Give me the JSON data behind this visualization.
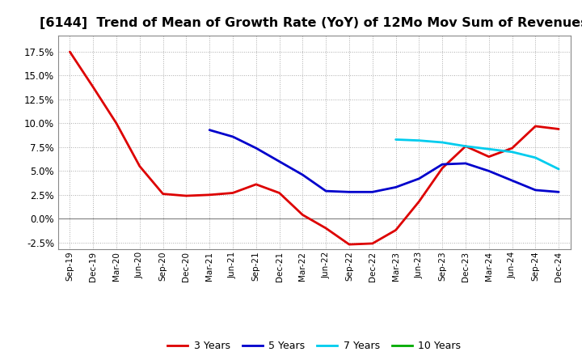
{
  "title": "[6144]  Trend of Mean of Growth Rate (YoY) of 12Mo Mov Sum of Revenues",
  "title_fontsize": 11.5,
  "background_color": "#ffffff",
  "plot_bg_color": "#ffffff",
  "grid_color": "#aaaaaa",
  "ylim": [
    -0.032,
    0.192
  ],
  "yticks": [
    -0.025,
    0.0,
    0.025,
    0.05,
    0.075,
    0.1,
    0.125,
    0.15,
    0.175
  ],
  "x_labels": [
    "Sep-19",
    "Dec-19",
    "Mar-20",
    "Jun-20",
    "Sep-20",
    "Dec-20",
    "Mar-21",
    "Jun-21",
    "Sep-21",
    "Dec-21",
    "Mar-22",
    "Jun-22",
    "Sep-22",
    "Dec-22",
    "Mar-23",
    "Jun-23",
    "Sep-23",
    "Dec-23",
    "Mar-24",
    "Jun-24",
    "Sep-24",
    "Dec-24"
  ],
  "series": {
    "3 Years": {
      "color": "#dd0000",
      "linewidth": 2.0,
      "data_x": [
        0,
        1,
        2,
        3,
        4,
        5,
        6,
        7,
        8,
        9,
        10,
        11,
        12,
        13,
        14,
        15,
        16,
        17,
        18,
        19,
        20,
        21
      ],
      "data_y": [
        0.175,
        0.138,
        0.1,
        0.055,
        0.026,
        0.024,
        0.025,
        0.027,
        0.036,
        0.027,
        0.004,
        -0.01,
        -0.027,
        -0.026,
        -0.012,
        0.018,
        0.053,
        0.076,
        0.065,
        0.074,
        0.097,
        0.094
      ]
    },
    "5 Years": {
      "color": "#0000cc",
      "linewidth": 2.0,
      "data_x": [
        6,
        7,
        8,
        9,
        10,
        11,
        12,
        13,
        14,
        15,
        16,
        17,
        18,
        19,
        20,
        21
      ],
      "data_y": [
        0.093,
        0.086,
        0.074,
        0.06,
        0.046,
        0.029,
        0.028,
        0.028,
        0.033,
        0.042,
        0.057,
        0.058,
        0.05,
        0.04,
        0.03,
        0.028
      ]
    },
    "7 Years": {
      "color": "#00ccee",
      "linewidth": 2.0,
      "data_x": [
        14,
        15,
        16,
        17,
        18,
        19,
        20,
        21
      ],
      "data_y": [
        0.083,
        0.082,
        0.08,
        0.076,
        0.073,
        0.07,
        0.064,
        0.052
      ]
    },
    "10 Years": {
      "color": "#00aa00",
      "linewidth": 2.0,
      "data_x": [],
      "data_y": []
    }
  },
  "legend_entries": [
    "3 Years",
    "5 Years",
    "7 Years",
    "10 Years"
  ],
  "legend_colors": [
    "#dd0000",
    "#0000cc",
    "#00ccee",
    "#00aa00"
  ]
}
